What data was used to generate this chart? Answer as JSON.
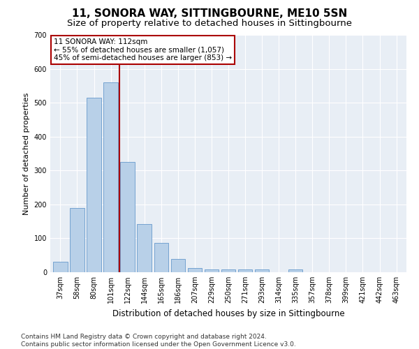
{
  "title1": "11, SONORA WAY, SITTINGBOURNE, ME10 5SN",
  "title2": "Size of property relative to detached houses in Sittingbourne",
  "xlabel": "Distribution of detached houses by size in Sittingbourne",
  "ylabel": "Number of detached properties",
  "categories": [
    "37sqm",
    "58sqm",
    "80sqm",
    "101sqm",
    "122sqm",
    "144sqm",
    "165sqm",
    "186sqm",
    "207sqm",
    "229sqm",
    "250sqm",
    "271sqm",
    "293sqm",
    "314sqm",
    "335sqm",
    "357sqm",
    "378sqm",
    "399sqm",
    "421sqm",
    "442sqm",
    "463sqm"
  ],
  "values": [
    30,
    190,
    515,
    560,
    325,
    142,
    87,
    40,
    13,
    8,
    8,
    8,
    8,
    0,
    8,
    0,
    0,
    0,
    0,
    0,
    0
  ],
  "bar_color": "#b8d0e8",
  "bar_edgecolor": "#6699cc",
  "vline_x": 3.5,
  "vline_color": "#aa0000",
  "annotation_text": "11 SONORA WAY: 112sqm\n← 55% of detached houses are smaller (1,057)\n45% of semi-detached houses are larger (853) →",
  "annotation_box_edgecolor": "#aa0000",
  "annotation_box_facecolor": "#ffffff",
  "ylim": [
    0,
    700
  ],
  "yticks": [
    0,
    100,
    200,
    300,
    400,
    500,
    600,
    700
  ],
  "footnote": "Contains HM Land Registry data © Crown copyright and database right 2024.\nContains public sector information licensed under the Open Government Licence v3.0.",
  "bg_color": "#ffffff",
  "plot_bg_color": "#e8eef5",
  "grid_color": "#ffffff",
  "title1_fontsize": 11,
  "title2_fontsize": 9.5,
  "xlabel_fontsize": 8.5,
  "ylabel_fontsize": 8,
  "tick_fontsize": 7,
  "footnote_fontsize": 6.5,
  "ann_fontsize": 7.5
}
